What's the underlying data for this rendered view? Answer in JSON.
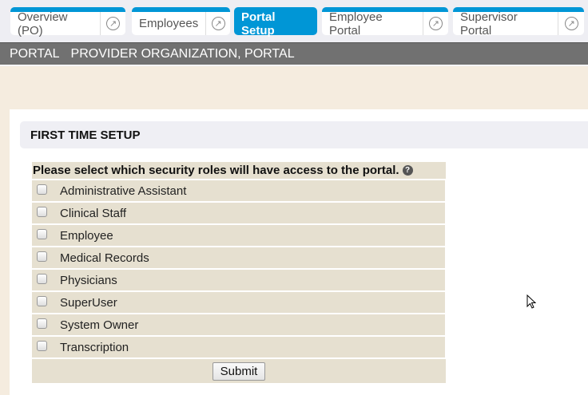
{
  "tabs": [
    {
      "label": "Overview (PO)",
      "external": true,
      "active": false
    },
    {
      "label": "Employees",
      "external": true,
      "active": false
    },
    {
      "label": "Portal Setup",
      "external": false,
      "active": true
    },
    {
      "label": "Employee Portal",
      "external": true,
      "active": false
    },
    {
      "label": "Supervisor Portal",
      "external": true,
      "active": false
    }
  ],
  "breadcrumb": {
    "module": "PORTAL",
    "context": "PROVIDER ORGANIZATION, PORTAL"
  },
  "section": {
    "title": "FIRST TIME SETUP"
  },
  "form": {
    "prompt": "Please select which security roles will have access to the portal.",
    "roles": [
      {
        "label": "Administrative Assistant",
        "checked": false
      },
      {
        "label": "Clinical Staff",
        "checked": false
      },
      {
        "label": "Employee",
        "checked": false
      },
      {
        "label": "Medical Records",
        "checked": false
      },
      {
        "label": "Physicians",
        "checked": false
      },
      {
        "label": "SuperUser",
        "checked": false
      },
      {
        "label": "System Owner",
        "checked": false
      },
      {
        "label": "Transcription",
        "checked": false
      }
    ],
    "submit_label": "Submit"
  },
  "colors": {
    "accent": "#0096d6",
    "bar": "#717171",
    "background": "#f5ecdf",
    "table": "#e6e0d0"
  }
}
